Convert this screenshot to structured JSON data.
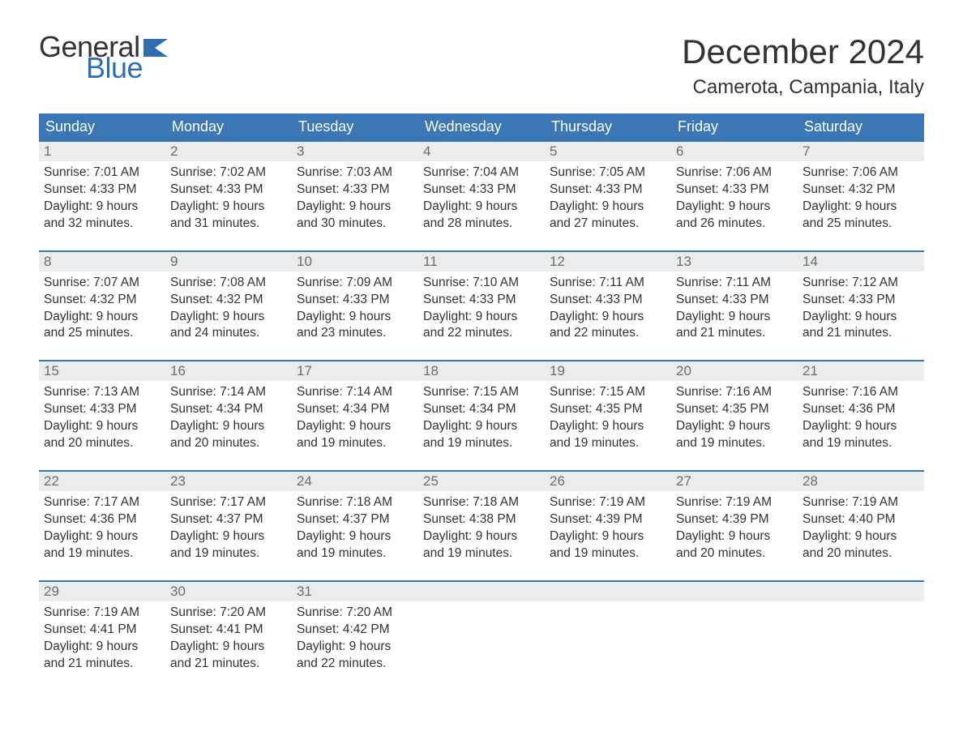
{
  "logo": {
    "word1": "General",
    "word2": "Blue",
    "flag_color": "#2f6eaf",
    "text_color": "#333333"
  },
  "title": "December 2024",
  "location": "Camerota, Campania, Italy",
  "colors": {
    "header_bg": "#3b77b5",
    "header_text": "#ffffff",
    "daynum_bg": "#ececec",
    "daynum_border": "#3b77b5",
    "daynum_text": "#6c6c6c",
    "body_text": "#333333",
    "page_bg": "#ffffff"
  },
  "layout": {
    "columns": 7,
    "rows": 5,
    "type": "calendar-table"
  },
  "weekdays": [
    "Sunday",
    "Monday",
    "Tuesday",
    "Wednesday",
    "Thursday",
    "Friday",
    "Saturday"
  ],
  "days": [
    {
      "n": "1",
      "sunrise": "Sunrise: 7:01 AM",
      "sunset": "Sunset: 4:33 PM",
      "d1": "Daylight: 9 hours",
      "d2": "and 32 minutes."
    },
    {
      "n": "2",
      "sunrise": "Sunrise: 7:02 AM",
      "sunset": "Sunset: 4:33 PM",
      "d1": "Daylight: 9 hours",
      "d2": "and 31 minutes."
    },
    {
      "n": "3",
      "sunrise": "Sunrise: 7:03 AM",
      "sunset": "Sunset: 4:33 PM",
      "d1": "Daylight: 9 hours",
      "d2": "and 30 minutes."
    },
    {
      "n": "4",
      "sunrise": "Sunrise: 7:04 AM",
      "sunset": "Sunset: 4:33 PM",
      "d1": "Daylight: 9 hours",
      "d2": "and 28 minutes."
    },
    {
      "n": "5",
      "sunrise": "Sunrise: 7:05 AM",
      "sunset": "Sunset: 4:33 PM",
      "d1": "Daylight: 9 hours",
      "d2": "and 27 minutes."
    },
    {
      "n": "6",
      "sunrise": "Sunrise: 7:06 AM",
      "sunset": "Sunset: 4:33 PM",
      "d1": "Daylight: 9 hours",
      "d2": "and 26 minutes."
    },
    {
      "n": "7",
      "sunrise": "Sunrise: 7:06 AM",
      "sunset": "Sunset: 4:32 PM",
      "d1": "Daylight: 9 hours",
      "d2": "and 25 minutes."
    },
    {
      "n": "8",
      "sunrise": "Sunrise: 7:07 AM",
      "sunset": "Sunset: 4:32 PM",
      "d1": "Daylight: 9 hours",
      "d2": "and 25 minutes."
    },
    {
      "n": "9",
      "sunrise": "Sunrise: 7:08 AM",
      "sunset": "Sunset: 4:32 PM",
      "d1": "Daylight: 9 hours",
      "d2": "and 24 minutes."
    },
    {
      "n": "10",
      "sunrise": "Sunrise: 7:09 AM",
      "sunset": "Sunset: 4:33 PM",
      "d1": "Daylight: 9 hours",
      "d2": "and 23 minutes."
    },
    {
      "n": "11",
      "sunrise": "Sunrise: 7:10 AM",
      "sunset": "Sunset: 4:33 PM",
      "d1": "Daylight: 9 hours",
      "d2": "and 22 minutes."
    },
    {
      "n": "12",
      "sunrise": "Sunrise: 7:11 AM",
      "sunset": "Sunset: 4:33 PM",
      "d1": "Daylight: 9 hours",
      "d2": "and 22 minutes."
    },
    {
      "n": "13",
      "sunrise": "Sunrise: 7:11 AM",
      "sunset": "Sunset: 4:33 PM",
      "d1": "Daylight: 9 hours",
      "d2": "and 21 minutes."
    },
    {
      "n": "14",
      "sunrise": "Sunrise: 7:12 AM",
      "sunset": "Sunset: 4:33 PM",
      "d1": "Daylight: 9 hours",
      "d2": "and 21 minutes."
    },
    {
      "n": "15",
      "sunrise": "Sunrise: 7:13 AM",
      "sunset": "Sunset: 4:33 PM",
      "d1": "Daylight: 9 hours",
      "d2": "and 20 minutes."
    },
    {
      "n": "16",
      "sunrise": "Sunrise: 7:14 AM",
      "sunset": "Sunset: 4:34 PM",
      "d1": "Daylight: 9 hours",
      "d2": "and 20 minutes."
    },
    {
      "n": "17",
      "sunrise": "Sunrise: 7:14 AM",
      "sunset": "Sunset: 4:34 PM",
      "d1": "Daylight: 9 hours",
      "d2": "and 19 minutes."
    },
    {
      "n": "18",
      "sunrise": "Sunrise: 7:15 AM",
      "sunset": "Sunset: 4:34 PM",
      "d1": "Daylight: 9 hours",
      "d2": "and 19 minutes."
    },
    {
      "n": "19",
      "sunrise": "Sunrise: 7:15 AM",
      "sunset": "Sunset: 4:35 PM",
      "d1": "Daylight: 9 hours",
      "d2": "and 19 minutes."
    },
    {
      "n": "20",
      "sunrise": "Sunrise: 7:16 AM",
      "sunset": "Sunset: 4:35 PM",
      "d1": "Daylight: 9 hours",
      "d2": "and 19 minutes."
    },
    {
      "n": "21",
      "sunrise": "Sunrise: 7:16 AM",
      "sunset": "Sunset: 4:36 PM",
      "d1": "Daylight: 9 hours",
      "d2": "and 19 minutes."
    },
    {
      "n": "22",
      "sunrise": "Sunrise: 7:17 AM",
      "sunset": "Sunset: 4:36 PM",
      "d1": "Daylight: 9 hours",
      "d2": "and 19 minutes."
    },
    {
      "n": "23",
      "sunrise": "Sunrise: 7:17 AM",
      "sunset": "Sunset: 4:37 PM",
      "d1": "Daylight: 9 hours",
      "d2": "and 19 minutes."
    },
    {
      "n": "24",
      "sunrise": "Sunrise: 7:18 AM",
      "sunset": "Sunset: 4:37 PM",
      "d1": "Daylight: 9 hours",
      "d2": "and 19 minutes."
    },
    {
      "n": "25",
      "sunrise": "Sunrise: 7:18 AM",
      "sunset": "Sunset: 4:38 PM",
      "d1": "Daylight: 9 hours",
      "d2": "and 19 minutes."
    },
    {
      "n": "26",
      "sunrise": "Sunrise: 7:19 AM",
      "sunset": "Sunset: 4:39 PM",
      "d1": "Daylight: 9 hours",
      "d2": "and 19 minutes."
    },
    {
      "n": "27",
      "sunrise": "Sunrise: 7:19 AM",
      "sunset": "Sunset: 4:39 PM",
      "d1": "Daylight: 9 hours",
      "d2": "and 20 minutes."
    },
    {
      "n": "28",
      "sunrise": "Sunrise: 7:19 AM",
      "sunset": "Sunset: 4:40 PM",
      "d1": "Daylight: 9 hours",
      "d2": "and 20 minutes."
    },
    {
      "n": "29",
      "sunrise": "Sunrise: 7:19 AM",
      "sunset": "Sunset: 4:41 PM",
      "d1": "Daylight: 9 hours",
      "d2": "and 21 minutes."
    },
    {
      "n": "30",
      "sunrise": "Sunrise: 7:20 AM",
      "sunset": "Sunset: 4:41 PM",
      "d1": "Daylight: 9 hours",
      "d2": "and 21 minutes."
    },
    {
      "n": "31",
      "sunrise": "Sunrise: 7:20 AM",
      "sunset": "Sunset: 4:42 PM",
      "d1": "Daylight: 9 hours",
      "d2": "and 22 minutes."
    }
  ]
}
